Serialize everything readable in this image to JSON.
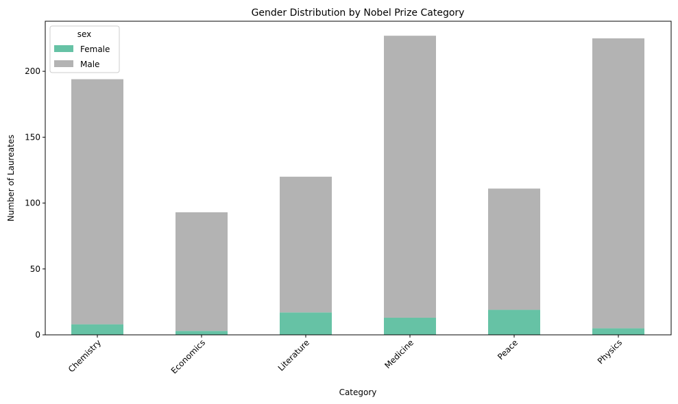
{
  "chart_data": {
    "type": "bar",
    "stacked": true,
    "title": "Gender Distribution by Nobel Prize Category",
    "xlabel": "Category",
    "ylabel": "Number of Laureates",
    "categories": [
      "Chemistry",
      "Economics",
      "Literature",
      "Medicine",
      "Peace",
      "Physics"
    ],
    "series": [
      {
        "name": "Female",
        "values": [
          8,
          3,
          17,
          13,
          19,
          5
        ],
        "color": "#66c2a5"
      },
      {
        "name": "Male",
        "values": [
          186,
          90,
          103,
          214,
          92,
          220
        ],
        "color": "#b3b3b3"
      }
    ],
    "ylim": [
      0,
      238
    ],
    "yticks": [
      0,
      50,
      100,
      150,
      200
    ],
    "grid": false,
    "legend": {
      "title": "sex",
      "placement": "top-left"
    }
  }
}
